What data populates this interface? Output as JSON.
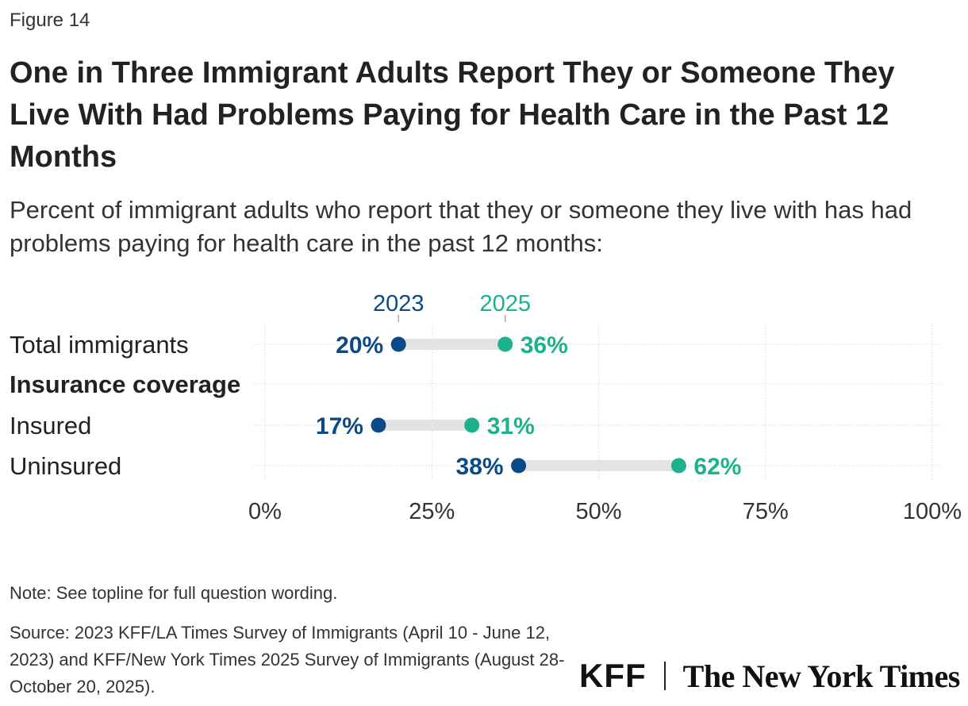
{
  "figure_label": "Figure 14",
  "title": "One in Three Immigrant Adults Report They or Someone They Live With Had Problems Paying for Health Care in the Past 12 Months",
  "subtitle": "Percent of immigrant adults who report that they or someone they live with has had problems paying for health care in the past 12 months:",
  "note": "Note: See topline for full question wording.",
  "source": "Source: 2023 KFF/LA Times Survey of Immigrants (April 10 - June 12, 2023) and KFF/New York Times 2025 Survey of Immigrants (August 28-October 20, 2025).",
  "logos": {
    "kff": "KFF",
    "nyt": "The New York Times"
  },
  "colors": {
    "y2023": "#0b4a87",
    "y2025": "#1bb28c",
    "connector": "#e3e3e3",
    "grid": "#cfcfcf",
    "text": "#222222"
  },
  "chart_data": {
    "type": "dumbbell",
    "series": [
      {
        "name": "2023",
        "color": "#0b4a87"
      },
      {
        "name": "2025",
        "color": "#1bb28c"
      }
    ],
    "rows": [
      {
        "label": "Total immigrants",
        "bold": false,
        "values": [
          20,
          36
        ]
      },
      {
        "label": "Insurance coverage",
        "bold": true,
        "values": null
      },
      {
        "label": "Insured",
        "bold": false,
        "values": [
          17,
          31
        ]
      },
      {
        "label": "Uninsured",
        "bold": false,
        "values": [
          38,
          62
        ]
      }
    ],
    "x_ticks": [
      0,
      25,
      50,
      75,
      100
    ],
    "x_tick_labels": [
      "0%",
      "25%",
      "50%",
      "75%",
      "100%"
    ],
    "xlim": [
      0,
      100
    ],
    "value_suffix": "%",
    "legend_placement": "top (labels above first row)",
    "grid": true
  }
}
